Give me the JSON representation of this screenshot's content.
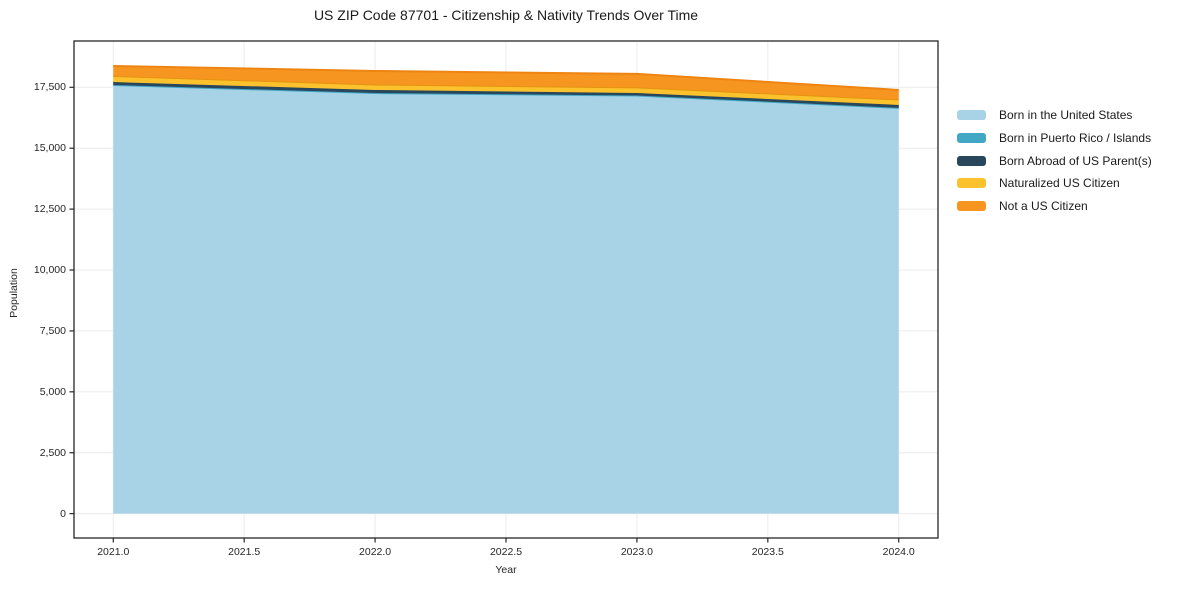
{
  "chart_data": {
    "type": "area",
    "stacked": true,
    "title": "US ZIP Code 87701 - Citizenship & Nativity Trends Over Time",
    "xlabel": "Year",
    "ylabel": "Population",
    "x": [
      2021,
      2022,
      2023,
      2024
    ],
    "xlim": [
      2020.85,
      2024.15
    ],
    "ylim": [
      -1000,
      19400
    ],
    "x_tick_values": [
      2021,
      2021.5,
      2022,
      2022.5,
      2023,
      2023.5,
      2024
    ],
    "x_tick_labels": [
      "2021.0",
      "2021.5",
      "2022.0",
      "2022.5",
      "2023.0",
      "2023.5",
      "2024.0"
    ],
    "y_tick_values": [
      0,
      2500,
      5000,
      7500,
      10000,
      12500,
      15000,
      17500
    ],
    "y_tick_labels": [
      "0",
      "2,500",
      "5,000",
      "7,500",
      "10,000",
      "12,500",
      "15,000",
      "17,500"
    ],
    "grid": true,
    "grid_color": "#ebebeb",
    "axis_color": "#262626",
    "legend_position": "right",
    "series": [
      {
        "name": "Born in the United States",
        "fill": "#a8d3e7",
        "line": "#a8d3e7",
        "values": [
          17580,
          17250,
          17150,
          16640
        ]
      },
      {
        "name": "Born in Puerto Rico / Islands",
        "fill": "#41a7c4",
        "line": "#41a7c4",
        "values": [
          15,
          15,
          15,
          15
        ]
      },
      {
        "name": "Born Abroad of US Parent(s)",
        "fill": "#29475c",
        "line": "#29475c",
        "values": [
          120,
          125,
          100,
          120
        ]
      },
      {
        "name": "Naturalized US Citizen",
        "fill": "#fcc22d",
        "line": "#e3940f",
        "values": [
          250,
          225,
          230,
          225
        ]
      },
      {
        "name": "Not a US Citizen",
        "fill": "#f79521",
        "line": "#ee8512",
        "values": [
          410,
          555,
          555,
          390
        ]
      }
    ]
  }
}
